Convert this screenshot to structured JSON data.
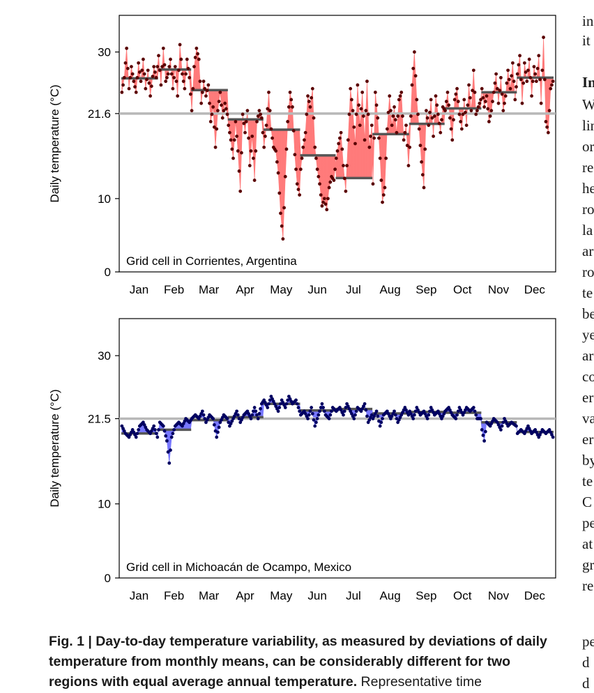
{
  "chart_data": [
    {
      "type": "line",
      "annotation": "Grid cell in Corrientes, Argentina",
      "ylabel": "Daily temperature (°C)",
      "ylim": [
        0,
        35
      ],
      "yticks": [
        0,
        10,
        21.6,
        30
      ],
      "ytick_labels": [
        "0",
        "10",
        "21.6",
        "30"
      ],
      "reference_line": 21.6,
      "categories": [
        "Jan",
        "Feb",
        "Mar",
        "Apr",
        "May",
        "Jun",
        "Jul",
        "Aug",
        "Sep",
        "Oct",
        "Nov",
        "Dec"
      ],
      "monthly_means": [
        26.4,
        27.6,
        24.8,
        20.8,
        19.4,
        15.9,
        12.8,
        18.8,
        20.2,
        22.3,
        24.5,
        26.5
      ],
      "daily_anchors": [
        [
          1,
          24.5
        ],
        [
          3,
          26.5
        ],
        [
          5,
          30.5
        ],
        [
          7,
          25.0
        ],
        [
          9,
          28.0
        ],
        [
          11,
          26.0
        ],
        [
          13,
          24.5
        ],
        [
          15,
          28.5
        ],
        [
          17,
          26.0
        ],
        [
          19,
          29.0
        ],
        [
          21,
          25.0
        ],
        [
          23,
          27.5
        ],
        [
          25,
          24.0
        ],
        [
          28,
          28.0
        ],
        [
          30,
          26.5
        ],
        [
          32,
          29.5
        ],
        [
          34,
          25.5
        ],
        [
          36,
          30.5
        ],
        [
          38,
          26.0
        ],
        [
          40,
          27.0
        ],
        [
          42,
          29.0
        ],
        [
          44,
          25.0
        ],
        [
          46,
          28.0
        ],
        [
          48,
          24.0
        ],
        [
          50,
          31.0
        ],
        [
          52,
          27.0
        ],
        [
          54,
          25.0
        ],
        [
          56,
          29.0
        ],
        [
          58,
          26.5
        ],
        [
          60,
          22.0
        ],
        [
          62,
          28.0
        ],
        [
          64,
          30.5
        ],
        [
          66,
          29.0
        ],
        [
          68,
          23.0
        ],
        [
          70,
          26.0
        ],
        [
          72,
          24.0
        ],
        [
          74,
          25.5
        ],
        [
          76,
          20.5
        ],
        [
          78,
          22.5
        ],
        [
          80,
          17.0
        ],
        [
          82,
          22.0
        ],
        [
          84,
          24.5
        ],
        [
          86,
          21.0
        ],
        [
          88,
          23.0
        ],
        [
          90,
          21.5
        ],
        [
          91,
          20.0
        ],
        [
          93,
          18.0
        ],
        [
          95,
          15.5
        ],
        [
          97,
          20.5
        ],
        [
          99,
          16.5
        ],
        [
          101,
          11.0
        ],
        [
          103,
          21.5
        ],
        [
          105,
          19.0
        ],
        [
          107,
          22.0
        ],
        [
          109,
          14.5
        ],
        [
          111,
          18.5
        ],
        [
          113,
          12.5
        ],
        [
          115,
          20.5
        ],
        [
          117,
          22.0
        ],
        [
          119,
          21.0
        ],
        [
          121,
          17.0
        ],
        [
          123,
          20.0
        ],
        [
          125,
          24.5
        ],
        [
          127,
          19.5
        ],
        [
          129,
          17.0
        ],
        [
          131,
          16.5
        ],
        [
          133,
          13.5
        ],
        [
          135,
          8.0
        ],
        [
          137,
          4.5
        ],
        [
          139,
          13.0
        ],
        [
          141,
          20.5
        ],
        [
          143,
          24.5
        ],
        [
          145,
          22.5
        ],
        [
          147,
          16.0
        ],
        [
          149,
          12.0
        ],
        [
          151,
          10.5
        ],
        [
          152,
          14.0
        ],
        [
          154,
          17.0
        ],
        [
          156,
          19.0
        ],
        [
          158,
          24.0
        ],
        [
          160,
          22.5
        ],
        [
          162,
          25.0
        ],
        [
          164,
          17.0
        ],
        [
          166,
          14.0
        ],
        [
          168,
          12.0
        ],
        [
          170,
          9.0
        ],
        [
          172,
          10.0
        ],
        [
          174,
          8.5
        ],
        [
          176,
          11.5
        ],
        [
          178,
          13.0
        ],
        [
          180,
          12.5
        ],
        [
          182,
          15.5
        ],
        [
          184,
          17.5
        ],
        [
          186,
          19.0
        ],
        [
          188,
          14.5
        ],
        [
          190,
          11.0
        ],
        [
          192,
          18.0
        ],
        [
          194,
          25.0
        ],
        [
          196,
          22.0
        ],
        [
          198,
          17.5
        ],
        [
          200,
          25.5
        ],
        [
          202,
          20.0
        ],
        [
          204,
          24.5
        ],
        [
          206,
          18.0
        ],
        [
          208,
          26.0
        ],
        [
          210,
          17.0
        ],
        [
          212,
          20.0
        ],
        [
          213,
          12.0
        ],
        [
          215,
          24.5
        ],
        [
          217,
          21.0
        ],
        [
          219,
          15.5
        ],
        [
          221,
          9.5
        ],
        [
          223,
          11.5
        ],
        [
          225,
          19.5
        ],
        [
          227,
          24.0
        ],
        [
          229,
          20.0
        ],
        [
          231,
          22.5
        ],
        [
          233,
          19.0
        ],
        [
          235,
          23.5
        ],
        [
          237,
          24.5
        ],
        [
          239,
          18.0
        ],
        [
          241,
          20.0
        ],
        [
          243,
          14.5
        ],
        [
          244,
          17.0
        ],
        [
          246,
          25.5
        ],
        [
          248,
          30.0
        ],
        [
          250,
          23.5
        ],
        [
          252,
          19.5
        ],
        [
          254,
          15.0
        ],
        [
          256,
          11.5
        ],
        [
          258,
          22.0
        ],
        [
          260,
          20.0
        ],
        [
          262,
          23.5
        ],
        [
          264,
          18.5
        ],
        [
          266,
          24.0
        ],
        [
          268,
          21.5
        ],
        [
          270,
          19.0
        ],
        [
          272,
          22.5
        ],
        [
          274,
          22.0
        ],
        [
          276,
          24.5
        ],
        [
          278,
          21.0
        ],
        [
          280,
          18.0
        ],
        [
          282,
          23.5
        ],
        [
          284,
          25.0
        ],
        [
          286,
          21.5
        ],
        [
          288,
          19.5
        ],
        [
          290,
          23.5
        ],
        [
          292,
          20.0
        ],
        [
          294,
          25.5
        ],
        [
          296,
          22.0
        ],
        [
          298,
          27.5
        ],
        [
          300,
          21.5
        ],
        [
          302,
          22.5
        ],
        [
          304,
          23.5
        ],
        [
          305,
          25.0
        ],
        [
          307,
          22.5
        ],
        [
          309,
          24.0
        ],
        [
          311,
          20.5
        ],
        [
          313,
          22.0
        ],
        [
          315,
          24.5
        ],
        [
          317,
          27.0
        ],
        [
          319,
          23.0
        ],
        [
          321,
          26.5
        ],
        [
          323,
          22.0
        ],
        [
          325,
          24.0
        ],
        [
          327,
          27.5
        ],
        [
          329,
          25.0
        ],
        [
          331,
          28.5
        ],
        [
          333,
          23.5
        ],
        [
          335,
          27.0
        ],
        [
          337,
          29.5
        ],
        [
          339,
          23.0
        ],
        [
          341,
          28.5
        ],
        [
          343,
          26.0
        ],
        [
          345,
          29.0
        ],
        [
          347,
          24.0
        ],
        [
          349,
          28.0
        ],
        [
          351,
          26.0
        ],
        [
          353,
          29.5
        ],
        [
          355,
          23.0
        ],
        [
          357,
          32.0
        ],
        [
          359,
          20.5
        ],
        [
          361,
          19.0
        ],
        [
          363,
          25.0
        ],
        [
          365,
          26.0
        ]
      ]
    },
    {
      "type": "line",
      "annotation": "Grid cell in Michoacán de Ocampo, Mexico",
      "ylabel": "Daily temperature (°C)",
      "ylim": [
        0,
        35
      ],
      "yticks": [
        0,
        10,
        21.5,
        30
      ],
      "ytick_labels": [
        "0",
        "10",
        "21.5",
        "30"
      ],
      "reference_line": 21.5,
      "categories": [
        "Jan",
        "Feb",
        "Mar",
        "Apr",
        "May",
        "Jun",
        "Jul",
        "Aug",
        "Sep",
        "Oct",
        "Nov",
        "Dec"
      ],
      "monthly_means": [
        19.5,
        20.0,
        21.3,
        21.7,
        23.5,
        22.6,
        22.8,
        22.2,
        22.4,
        22.3,
        21.0,
        19.7
      ],
      "daily_anchors": [
        [
          1,
          20.5
        ],
        [
          4,
          19.5
        ],
        [
          7,
          19.0
        ],
        [
          10,
          20.0
        ],
        [
          13,
          19.0
        ],
        [
          16,
          20.5
        ],
        [
          19,
          21.0
        ],
        [
          22,
          20.0
        ],
        [
          25,
          19.5
        ],
        [
          28,
          20.5
        ],
        [
          31,
          19.0
        ],
        [
          33,
          21.0
        ],
        [
          36,
          20.5
        ],
        [
          39,
          18.5
        ],
        [
          41,
          15.5
        ],
        [
          43,
          19.0
        ],
        [
          46,
          20.5
        ],
        [
          49,
          21.0
        ],
        [
          52,
          20.5
        ],
        [
          55,
          21.5
        ],
        [
          58,
          21.0
        ],
        [
          60,
          21.5
        ],
        [
          63,
          22.0
        ],
        [
          66,
          21.5
        ],
        [
          69,
          22.5
        ],
        [
          72,
          21.0
        ],
        [
          75,
          22.0
        ],
        [
          78,
          21.5
        ],
        [
          81,
          19.0
        ],
        [
          84,
          21.0
        ],
        [
          87,
          22.0
        ],
        [
          90,
          21.5
        ],
        [
          92,
          20.5
        ],
        [
          95,
          21.5
        ],
        [
          98,
          22.5
        ],
        [
          101,
          21.0
        ],
        [
          104,
          22.0
        ],
        [
          107,
          22.5
        ],
        [
          110,
          21.5
        ],
        [
          113,
          23.0
        ],
        [
          116,
          21.5
        ],
        [
          119,
          23.5
        ],
        [
          121,
          24.0
        ],
        [
          124,
          23.0
        ],
        [
          127,
          24.5
        ],
        [
          130,
          23.5
        ],
        [
          133,
          22.5
        ],
        [
          136,
          24.0
        ],
        [
          139,
          23.0
        ],
        [
          142,
          24.5
        ],
        [
          145,
          23.5
        ],
        [
          148,
          24.0
        ],
        [
          151,
          22.5
        ],
        [
          152,
          22.0
        ],
        [
          155,
          22.5
        ],
        [
          158,
          21.5
        ],
        [
          161,
          23.0
        ],
        [
          164,
          20.5
        ],
        [
          167,
          22.0
        ],
        [
          170,
          23.5
        ],
        [
          173,
          22.0
        ],
        [
          176,
          21.5
        ],
        [
          179,
          23.0
        ],
        [
          182,
          22.5
        ],
        [
          185,
          23.0
        ],
        [
          188,
          22.0
        ],
        [
          191,
          23.5
        ],
        [
          194,
          22.5
        ],
        [
          197,
          21.5
        ],
        [
          200,
          23.0
        ],
        [
          203,
          22.5
        ],
        [
          206,
          23.5
        ],
        [
          209,
          21.0
        ],
        [
          212,
          22.0
        ],
        [
          213,
          21.5
        ],
        [
          216,
          22.5
        ],
        [
          219,
          20.5
        ],
        [
          222,
          22.0
        ],
        [
          225,
          22.5
        ],
        [
          228,
          21.5
        ],
        [
          231,
          22.5
        ],
        [
          234,
          21.0
        ],
        [
          237,
          22.0
        ],
        [
          240,
          23.0
        ],
        [
          243,
          22.0
        ],
        [
          244,
          22.5
        ],
        [
          247,
          21.5
        ],
        [
          250,
          23.0
        ],
        [
          253,
          22.0
        ],
        [
          256,
          22.5
        ],
        [
          259,
          21.5
        ],
        [
          262,
          23.0
        ],
        [
          265,
          22.0
        ],
        [
          268,
          22.5
        ],
        [
          271,
          21.5
        ],
        [
          274,
          22.5
        ],
        [
          277,
          23.0
        ],
        [
          280,
          22.0
        ],
        [
          283,
          21.5
        ],
        [
          286,
          23.0
        ],
        [
          289,
          22.0
        ],
        [
          292,
          23.0
        ],
        [
          295,
          22.5
        ],
        [
          298,
          23.0
        ],
        [
          301,
          21.5
        ],
        [
          304,
          21.5
        ],
        [
          305,
          20.0
        ],
        [
          307,
          18.5
        ],
        [
          309,
          21.0
        ],
        [
          312,
          20.5
        ],
        [
          315,
          21.5
        ],
        [
          318,
          21.0
        ],
        [
          321,
          20.0
        ],
        [
          324,
          21.5
        ],
        [
          327,
          20.5
        ],
        [
          330,
          21.0
        ],
        [
          334,
          20.5
        ],
        [
          335,
          19.5
        ],
        [
          338,
          20.0
        ],
        [
          341,
          19.5
        ],
        [
          344,
          20.5
        ],
        [
          347,
          19.5
        ],
        [
          350,
          20.0
        ],
        [
          353,
          19.0
        ],
        [
          356,
          20.0
        ],
        [
          359,
          19.5
        ],
        [
          362,
          20.0
        ],
        [
          365,
          19.0
        ]
      ]
    }
  ],
  "caption": {
    "lead": "Fig. 1 | Day-to-day temperature variability, as measured by deviations of daily temperature from monthly means, can be considerably different for two regions with equal average annual temperature.",
    "rest": " Representative time"
  },
  "side_text": [
    "in",
    "it",
    "In",
    "W",
    "lin",
    "or",
    "re",
    "he",
    "ro",
    "la",
    "ar",
    "ro",
    "te",
    "be",
    "ye",
    "ar",
    "co",
    "er",
    "va",
    "er",
    "by",
    "te",
    "C",
    "pe",
    "at",
    "gr",
    "re",
    "pe",
    "d",
    "d"
  ],
  "colors": {
    "panel1_fill": "#ff7b7b",
    "panel1_points": "#5a0000",
    "panel2_fill": "#7878ff",
    "panel2_points": "#000060",
    "reference_line": "#b8b8b8",
    "monthly_mean": "#555555"
  }
}
